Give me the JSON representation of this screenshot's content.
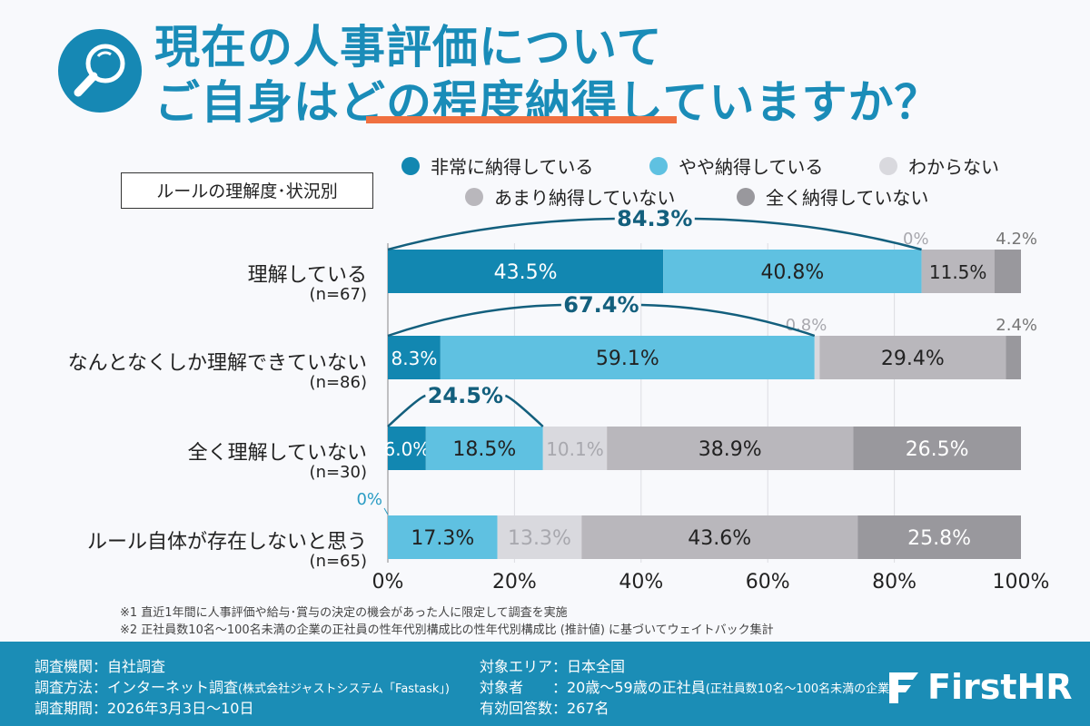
{
  "header": {
    "title_line1": "現在の人事評価について",
    "title_line2_pre": "ご自身は",
    "title_line2_highlight": "どの程度納得",
    "title_line2_post": "していますか？",
    "icon": "magnifier-icon",
    "accent_color": "#1a8cb8",
    "underline_color": "#f07040"
  },
  "subgroup_label": "ルールの理解度･状況別",
  "chart_data": {
    "type": "bar",
    "orientation": "horizontal-stacked-100",
    "categories": [
      "理解している",
      "なんとなくしか理解できていない",
      "全く理解していない",
      "ルール自体が存在しないと思う"
    ],
    "category_n": [
      "(n=67)",
      "(n=86)",
      "(n=30)",
      "(n=65)"
    ],
    "series": [
      {
        "name": "非常に納得している",
        "color": "#1287b1",
        "values": [
          43.5,
          8.3,
          6.0,
          0
        ]
      },
      {
        "name": "やや納得している",
        "color": "#5fc1e1",
        "values": [
          40.8,
          59.1,
          18.5,
          17.3
        ]
      },
      {
        "name": "わからない",
        "color": "#d9d9de",
        "values": [
          0,
          0.8,
          10.1,
          13.3
        ]
      },
      {
        "name": "あまり納得していない",
        "color": "#b9b7bc",
        "values": [
          11.5,
          29.4,
          38.9,
          43.6
        ]
      },
      {
        "name": "全く納得していない",
        "color": "#99989d",
        "values": [
          4.2,
          2.4,
          26.5,
          25.8
        ]
      }
    ],
    "bracket_totals": [
      "84.3%",
      "67.4%",
      "24.5%",
      null
    ],
    "xlim": [
      0,
      100
    ],
    "xticks": [
      "0%",
      "20%",
      "40%",
      "60%",
      "80%",
      "100%"
    ],
    "grid": true,
    "legend": "top",
    "unit": "%"
  },
  "notes": [
    "※1 直近1年間に人事評価や給与･賞与の決定の機会があった人に限定して調査を実施",
    "※2 正社員数10名〜100名未満の企業の正社員の性年代別構成比の性年代別構成比 (推計値) に基づいてウェイトバック集計"
  ],
  "footer": {
    "org_label": "調査機関：自社調査",
    "method_label": "調査方法：インターネット調査",
    "method_note": "(株式会社ジャストシステム「Fastask」)",
    "period_label": "調査期間：2026年3月3日〜10日",
    "area_label": "対象エリア：日本全国",
    "target_label": "対象者　　：20歳〜59歳の正社員",
    "target_note": "(正社員数10名〜100名未満の企業)",
    "responses_label": "有効回答数：267名",
    "logo_text": "FirstHR",
    "background_color": "#1b8db6"
  }
}
